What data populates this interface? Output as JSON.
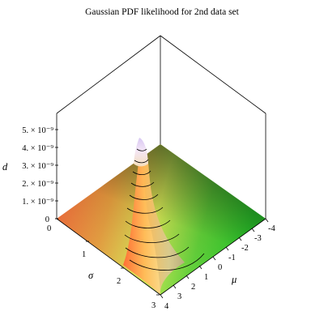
{
  "chart_data": {
    "type": "surface3d",
    "title": "Gaussian PDF likelihood for 2nd data set",
    "xlabel": "μ",
    "ylabel": "σ",
    "zlabel": "d",
    "x_ticks": [
      "-4",
      "-3",
      "-2",
      "-1",
      "0",
      "1",
      "2",
      "3",
      "4"
    ],
    "y_ticks": [
      "0",
      "1",
      "2",
      "3"
    ],
    "z_ticks": [
      "0",
      "1. × 10⁻⁹",
      "2. × 10⁻⁹",
      "3. × 10⁻⁹",
      "4. × 10⁻⁹",
      "5. × 10⁻⁹"
    ],
    "xlim": [
      -4,
      4
    ],
    "ylim": [
      0,
      3
    ],
    "zlim": [
      0,
      5.5e-09
    ],
    "peak": {
      "mu": 0.6,
      "sigma": 0.45,
      "value": 4.6e-09
    },
    "colors": {
      "low_near": "#e65c3a",
      "low_left": "#f05a38",
      "mid": "#d8e85a",
      "high_right": "#35d62f",
      "far": "#4d7c49",
      "peak": "#e9d8f1"
    }
  }
}
